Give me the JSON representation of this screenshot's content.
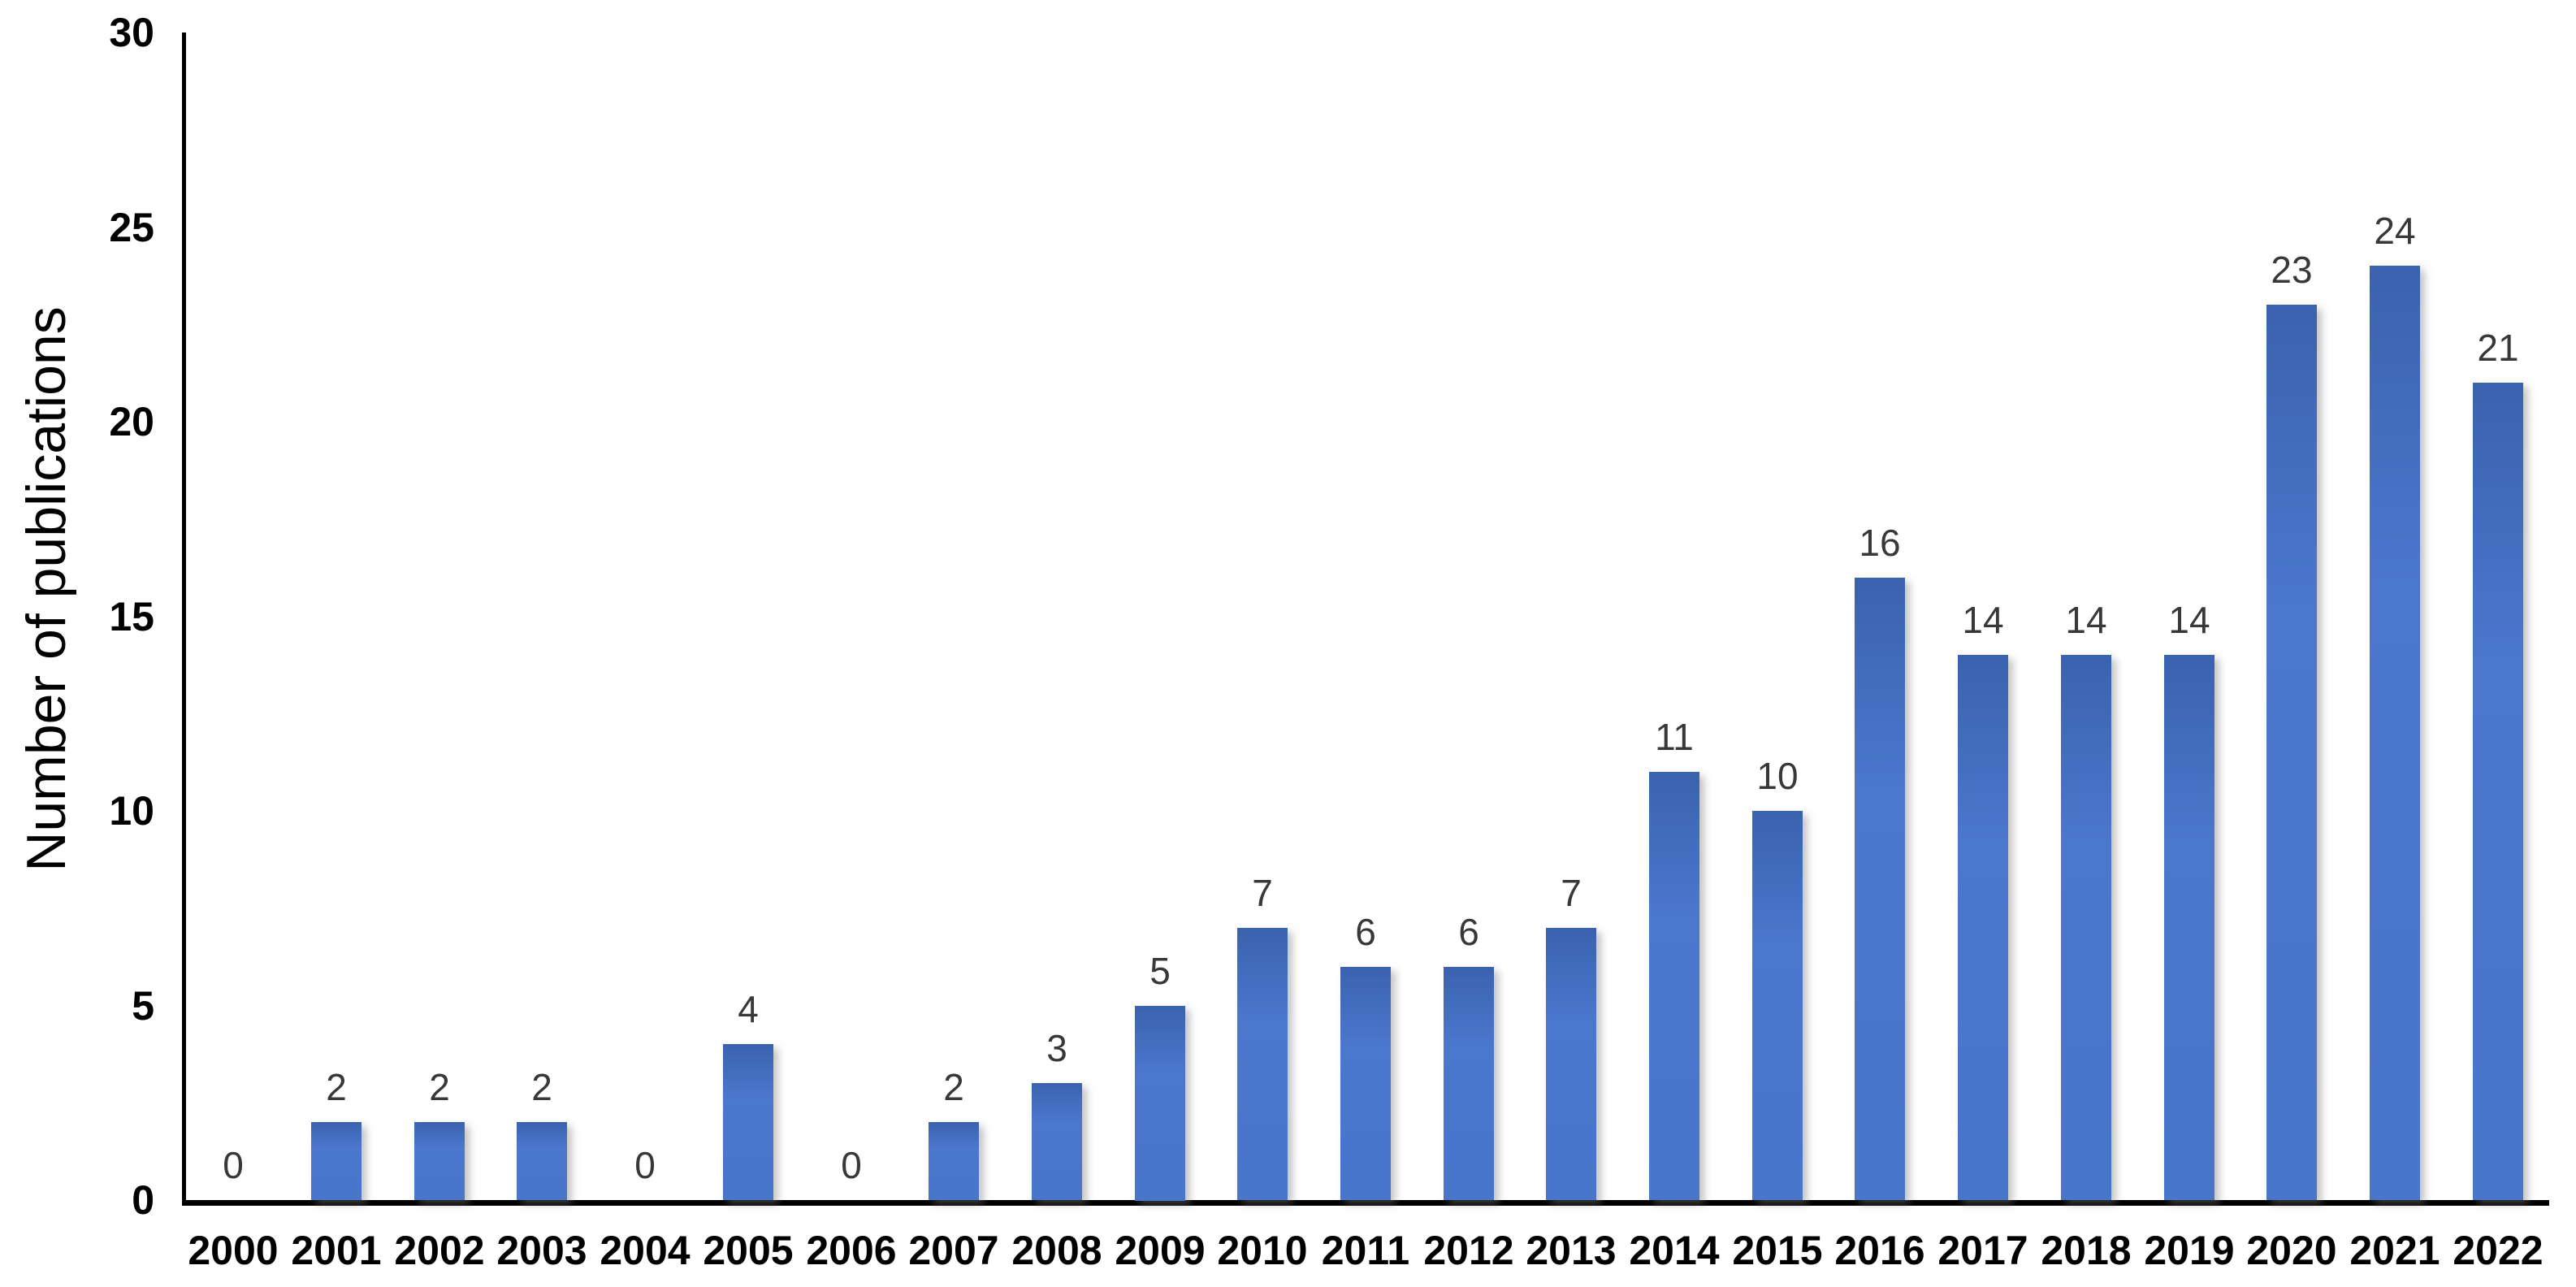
{
  "chart_data": {
    "type": "bar",
    "title": "",
    "xlabel": "",
    "ylabel": "Number of publications",
    "categories": [
      "2000",
      "2001",
      "2002",
      "2003",
      "2004",
      "2005",
      "2006",
      "2007",
      "2008",
      "2009",
      "2010",
      "2011",
      "2012",
      "2013",
      "2014",
      "2015",
      "2016",
      "2017",
      "2018",
      "2019",
      "2020",
      "2021",
      "2022"
    ],
    "values": [
      0,
      2,
      2,
      2,
      0,
      4,
      0,
      2,
      3,
      5,
      7,
      6,
      6,
      7,
      11,
      10,
      16,
      14,
      14,
      14,
      23,
      24,
      21
    ],
    "data_labels": [
      "0",
      "2",
      "2",
      "2",
      "0",
      "4",
      "0",
      "2",
      "3",
      "5",
      "7",
      "6",
      "6",
      "7",
      "11",
      "10",
      "16",
      "14",
      "14",
      "14",
      "23",
      "24",
      "21"
    ],
    "ylim": [
      0,
      30
    ],
    "yticks": [
      0,
      5,
      10,
      15,
      20,
      25,
      30
    ],
    "grid": false,
    "legend": false,
    "bar_color": "#4472C4",
    "bar_gradient_top": "#3A62AE",
    "bar_gradient_bottom": "#4876CB",
    "data_label_color": "#383838",
    "axis_color": "#000000",
    "background_color": "#FFFFFF"
  }
}
